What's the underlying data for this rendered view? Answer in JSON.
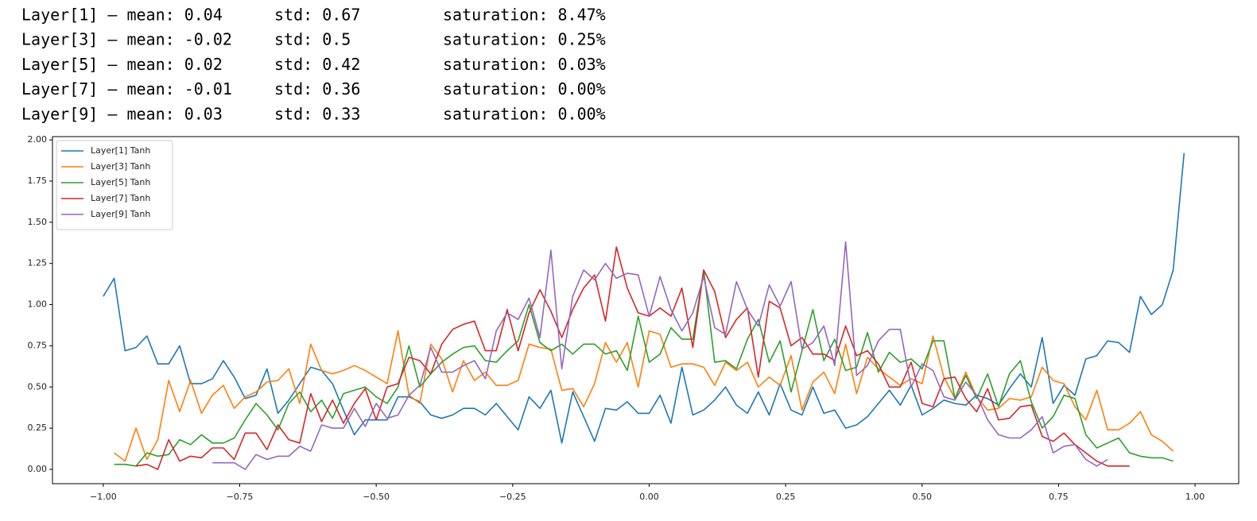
{
  "stats_lines": [
    {
      "layer": "Layer[1] — mean: 0.04",
      "std": "std: 0.67",
      "saturation": "saturation: 8.47%"
    },
    {
      "layer": "Layer[3] — mean: -0.02",
      "std": "std: 0.5",
      "saturation": "saturation: 0.25%"
    },
    {
      "layer": "Layer[5] — mean: 0.02",
      "std": "std: 0.42",
      "saturation": "saturation: 0.03%"
    },
    {
      "layer": "Layer[7] — mean: -0.01",
      "std": "std: 0.36",
      "saturation": "saturation: 0.00%"
    },
    {
      "layer": "Layer[9] — mean: 0.03",
      "std": "std: 0.33",
      "saturation": "saturation: 0.00%"
    }
  ],
  "chart_data": {
    "type": "line",
    "x": [
      -1.0,
      -0.98,
      -0.96,
      -0.94,
      -0.92,
      -0.9,
      -0.88,
      -0.86,
      -0.84,
      -0.82,
      -0.8,
      -0.78,
      -0.76,
      -0.74,
      -0.72,
      -0.7,
      -0.68,
      -0.66,
      -0.64,
      -0.62,
      -0.6,
      -0.58,
      -0.56,
      -0.54,
      -0.52,
      -0.5,
      -0.48,
      -0.46,
      -0.44,
      -0.42,
      -0.4,
      -0.38,
      -0.36,
      -0.34,
      -0.32,
      -0.3,
      -0.28,
      -0.26,
      -0.24,
      -0.22,
      -0.2,
      -0.18,
      -0.16,
      -0.14,
      -0.12,
      -0.1,
      -0.08,
      -0.06,
      -0.04,
      -0.02,
      0.0,
      0.02,
      0.04,
      0.06,
      0.08,
      0.1,
      0.12,
      0.14,
      0.16,
      0.18,
      0.2,
      0.22,
      0.24,
      0.26,
      0.28,
      0.3,
      0.32,
      0.34,
      0.36,
      0.38,
      0.4,
      0.42,
      0.44,
      0.46,
      0.48,
      0.5,
      0.52,
      0.54,
      0.56,
      0.58,
      0.6,
      0.62,
      0.64,
      0.66,
      0.68,
      0.7,
      0.72,
      0.74,
      0.76,
      0.78,
      0.8,
      0.82,
      0.84,
      0.86,
      0.88,
      0.9,
      0.92,
      0.94,
      0.96,
      0.98
    ],
    "series": [
      {
        "name": "Layer[1] Tanh",
        "color": "#1f77b4",
        "values": [
          1.05,
          1.16,
          0.72,
          0.74,
          0.81,
          0.64,
          0.64,
          0.75,
          0.52,
          0.52,
          0.55,
          0.66,
          0.56,
          0.43,
          0.45,
          0.61,
          0.34,
          0.42,
          0.52,
          0.62,
          0.6,
          0.52,
          0.36,
          0.21,
          0.3,
          0.3,
          0.3,
          0.44,
          0.44,
          0.41,
          0.33,
          0.31,
          0.33,
          0.37,
          0.37,
          0.33,
          0.4,
          0.32,
          0.24,
          0.44,
          0.37,
          0.48,
          0.16,
          0.47,
          0.32,
          0.17,
          0.37,
          0.36,
          0.41,
          0.34,
          0.34,
          0.45,
          0.28,
          0.62,
          0.33,
          0.36,
          0.42,
          0.5,
          0.39,
          0.34,
          0.47,
          0.33,
          0.52,
          0.36,
          0.33,
          0.5,
          0.34,
          0.36,
          0.25,
          0.27,
          0.32,
          0.4,
          0.48,
          0.39,
          0.51,
          0.33,
          0.37,
          0.42,
          0.4,
          0.39,
          0.45,
          0.43,
          0.39,
          0.49,
          0.58,
          0.5,
          0.8,
          0.4,
          0.51,
          0.45,
          0.67,
          0.69,
          0.78,
          0.77,
          0.71,
          1.05,
          0.94,
          1.0,
          1.21,
          1.92
        ]
      },
      {
        "name": "Layer[3] Tanh",
        "color": "#ff7f0e",
        "values": [
          null,
          0.1,
          0.05,
          0.25,
          0.06,
          0.18,
          0.54,
          0.35,
          0.54,
          0.34,
          0.45,
          0.51,
          0.37,
          0.44,
          0.47,
          0.53,
          0.54,
          0.61,
          0.4,
          0.76,
          0.6,
          0.58,
          0.6,
          0.63,
          0.6,
          0.56,
          0.52,
          0.84,
          0.45,
          0.4,
          0.76,
          0.67,
          0.47,
          0.66,
          0.54,
          0.59,
          0.51,
          0.51,
          0.54,
          0.76,
          0.74,
          0.73,
          0.48,
          0.49,
          0.38,
          0.52,
          0.77,
          0.65,
          0.77,
          0.5,
          0.84,
          0.82,
          0.62,
          0.64,
          0.64,
          0.62,
          0.51,
          0.65,
          0.6,
          0.65,
          0.5,
          0.56,
          0.51,
          0.69,
          0.36,
          0.53,
          0.59,
          0.46,
          0.76,
          0.46,
          0.68,
          0.61,
          0.56,
          0.51,
          0.55,
          0.52,
          0.81,
          0.56,
          0.43,
          0.59,
          0.44,
          0.36,
          0.37,
          0.43,
          0.42,
          0.44,
          0.62,
          0.54,
          0.52,
          0.38,
          0.3,
          0.48,
          0.24,
          0.24,
          0.28,
          0.35,
          0.21,
          0.17,
          0.11,
          null
        ]
      },
      {
        "name": "Layer[5] Tanh",
        "color": "#2ca02c",
        "values": [
          null,
          0.03,
          0.03,
          0.02,
          0.1,
          0.08,
          0.09,
          0.18,
          0.15,
          0.21,
          0.16,
          0.16,
          0.19,
          0.3,
          0.4,
          0.33,
          0.24,
          0.4,
          0.47,
          0.35,
          0.42,
          0.31,
          0.46,
          0.48,
          0.5,
          0.44,
          0.4,
          0.5,
          0.75,
          0.5,
          0.58,
          0.65,
          0.7,
          0.74,
          0.75,
          0.66,
          0.65,
          0.72,
          0.78,
          1.0,
          0.77,
          0.72,
          0.76,
          0.7,
          0.76,
          0.76,
          0.7,
          0.72,
          0.6,
          0.93,
          0.65,
          0.7,
          0.86,
          0.79,
          0.79,
          1.21,
          0.65,
          0.66,
          0.61,
          0.79,
          0.91,
          0.65,
          0.78,
          0.47,
          0.72,
          0.97,
          0.66,
          0.79,
          0.6,
          0.62,
          0.83,
          0.59,
          0.71,
          0.65,
          0.67,
          0.61,
          0.78,
          0.78,
          0.43,
          0.57,
          0.43,
          0.58,
          0.38,
          0.58,
          0.66,
          0.41,
          0.25,
          0.32,
          0.45,
          0.43,
          0.21,
          0.13,
          0.16,
          0.19,
          0.1,
          0.08,
          0.07,
          0.07,
          0.05,
          null
        ]
      },
      {
        "name": "Layer[7] Tanh",
        "color": "#d62728",
        "values": [
          null,
          null,
          null,
          0.02,
          0.03,
          0.0,
          0.18,
          0.05,
          0.08,
          0.07,
          0.13,
          0.13,
          0.06,
          0.22,
          0.22,
          0.12,
          0.27,
          0.18,
          0.16,
          0.46,
          0.29,
          0.42,
          0.28,
          0.4,
          0.49,
          0.3,
          0.5,
          0.52,
          0.68,
          0.66,
          0.58,
          0.76,
          0.85,
          0.88,
          0.9,
          0.72,
          0.72,
          0.97,
          0.72,
          0.95,
          1.09,
          0.96,
          0.8,
          0.97,
          1.1,
          1.18,
          0.9,
          1.35,
          1.1,
          0.95,
          0.93,
          0.98,
          0.93,
          1.1,
          0.74,
          1.21,
          1.08,
          0.8,
          0.91,
          0.98,
          0.56,
          1.02,
          0.98,
          0.75,
          0.8,
          0.7,
          0.7,
          0.66,
          0.87,
          0.69,
          0.72,
          0.64,
          0.5,
          0.5,
          0.65,
          0.4,
          0.38,
          0.55,
          0.56,
          0.43,
          0.35,
          0.49,
          0.3,
          0.31,
          0.38,
          0.39,
          0.2,
          0.17,
          0.22,
          0.15,
          0.1,
          0.05,
          0.02,
          0.02,
          0.02,
          null,
          null,
          null,
          null,
          null
        ]
      },
      {
        "name": "Layer[9] Tanh",
        "color": "#9467bd",
        "values": [
          null,
          null,
          null,
          null,
          null,
          null,
          null,
          null,
          null,
          null,
          0.04,
          0.04,
          0.04,
          0.0,
          0.09,
          0.06,
          0.08,
          0.08,
          0.14,
          0.11,
          0.27,
          0.25,
          0.25,
          0.37,
          0.26,
          0.4,
          0.31,
          0.33,
          0.45,
          0.51,
          0.74,
          0.59,
          0.59,
          0.63,
          0.66,
          0.55,
          0.84,
          0.95,
          0.91,
          1.04,
          0.8,
          1.33,
          0.61,
          1.05,
          1.21,
          1.15,
          1.25,
          1.16,
          1.19,
          1.18,
          0.93,
          1.17,
          0.97,
          0.84,
          0.95,
          1.17,
          0.86,
          0.82,
          1.14,
          0.97,
          0.87,
          1.12,
          0.99,
          1.14,
          0.73,
          0.77,
          0.87,
          0.63,
          1.38,
          0.57,
          0.63,
          0.78,
          0.85,
          0.85,
          0.5,
          0.64,
          0.6,
          0.44,
          0.42,
          0.53,
          0.45,
          0.3,
          0.21,
          0.19,
          0.19,
          0.24,
          0.32,
          0.1,
          0.14,
          0.15,
          0.06,
          0.02,
          0.06,
          null,
          null,
          null,
          null,
          null,
          null,
          null
        ]
      }
    ],
    "xlim": [
      -1.093,
      1.08
    ],
    "ylim": [
      -0.087,
      2.02
    ],
    "xticks": [
      {
        "value": -1.0,
        "label": "−1.00"
      },
      {
        "value": -0.75,
        "label": "−0.75"
      },
      {
        "value": -0.5,
        "label": "−0.50"
      },
      {
        "value": -0.25,
        "label": "−0.25"
      },
      {
        "value": 0,
        "label": "0.00"
      },
      {
        "value": 0.25,
        "label": "0.25"
      },
      {
        "value": 0.5,
        "label": "0.50"
      },
      {
        "value": 0.75,
        "label": "0.75"
      },
      {
        "value": 1.0,
        "label": "1.00"
      }
    ],
    "yticks": [
      {
        "value": 0,
        "label": "0.00"
      },
      {
        "value": 0.25,
        "label": "0.25"
      },
      {
        "value": 0.5,
        "label": "0.50"
      },
      {
        "value": 0.75,
        "label": "0.75"
      },
      {
        "value": 1.0,
        "label": "1.00"
      },
      {
        "value": 1.25,
        "label": "1.25"
      },
      {
        "value": 1.5,
        "label": "1.50"
      },
      {
        "value": 1.75,
        "label": "1.75"
      },
      {
        "value": 2.0,
        "label": "2.00"
      }
    ],
    "grid": false,
    "legend": "upper left"
  }
}
